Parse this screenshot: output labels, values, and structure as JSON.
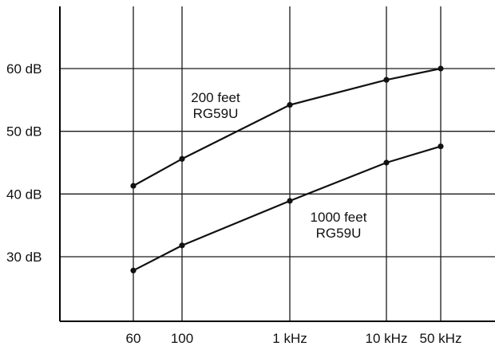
{
  "chart_data": {
    "type": "line",
    "x_scale": "log",
    "x": [
      60,
      100,
      1000,
      10000,
      50000
    ],
    "x_tick_labels": [
      "60",
      "100",
      "1 kHz",
      "10 kHz",
      "50 kHz"
    ],
    "y_ticks": [
      30,
      40,
      50,
      60
    ],
    "y_tick_labels": [
      "30 dB",
      "40 dB",
      "50 dB",
      "60 dB"
    ],
    "grid": true,
    "series": [
      {
        "name_lines": [
          "200 feet",
          "RG59U"
        ],
        "values": [
          41.3,
          45.6,
          54.2,
          58.2,
          60.0
        ]
      },
      {
        "name_lines": [
          "1000 feet",
          "RG59U"
        ],
        "values": [
          27.8,
          31.8,
          38.9,
          45.0,
          47.6
        ]
      }
    ],
    "colors": {
      "line": "#111111",
      "grid": "#1a1a1a"
    }
  }
}
